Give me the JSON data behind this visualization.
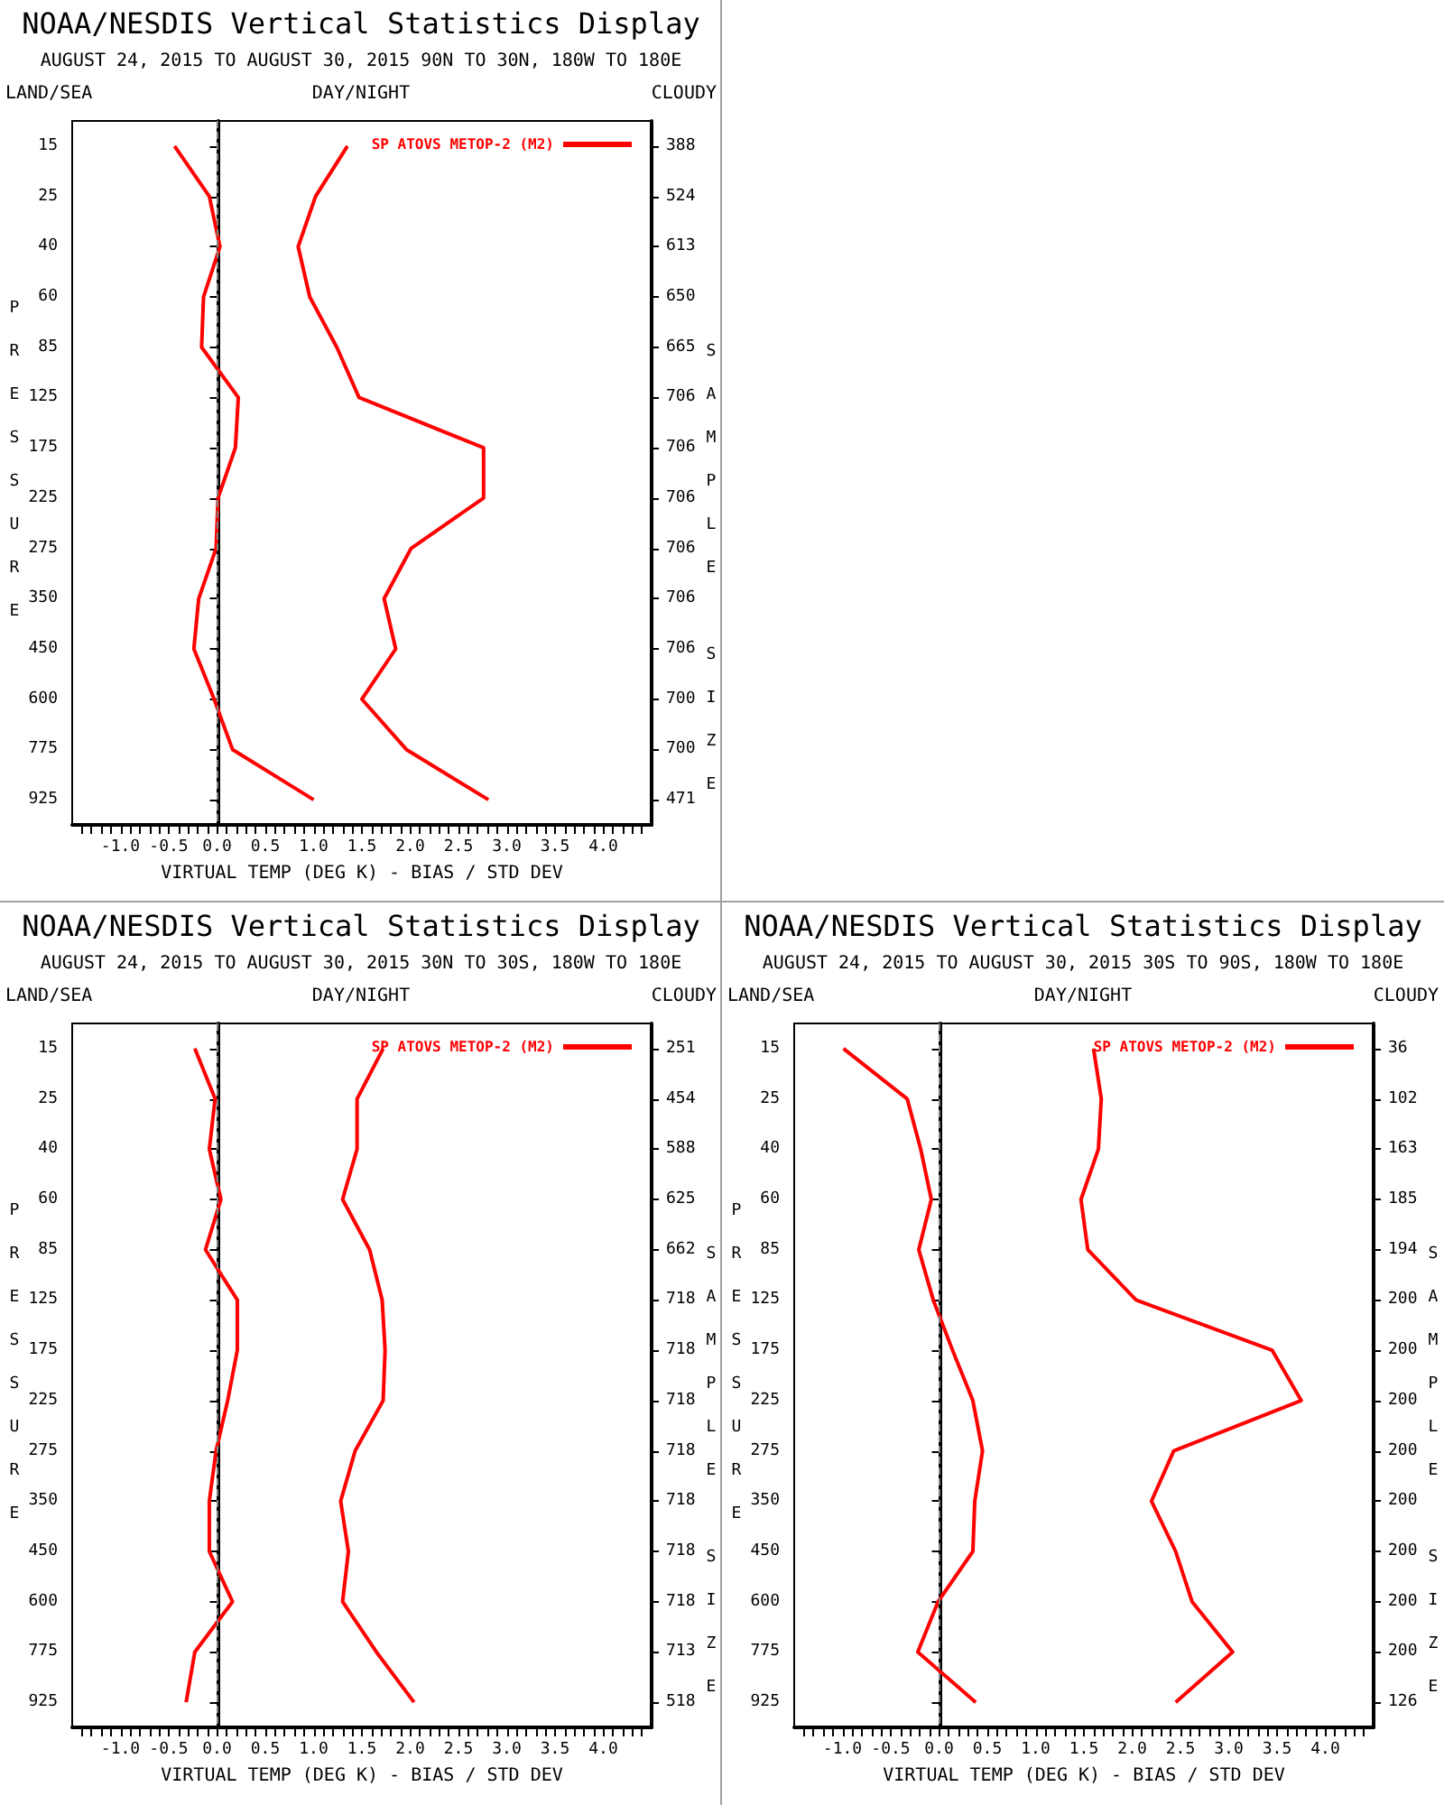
{
  "chart_data": [
    {
      "type": "line",
      "orientation": "horizontal",
      "title": "NOAA/NESDIS Vertical Statistics Display",
      "subtitle": "AUGUST 24, 2015 TO AUGUST 30, 2015 90N TO 30N, 180W TO 180E",
      "xlabel": "VIRTUAL TEMP (DEG K) - BIAS / STD DEV",
      "ylabel": "PRESSURE",
      "y2label": "SAMPLE SIZE",
      "annotations": [
        "LAND/SEA",
        "DAY/NIGHT",
        "CLOUDY"
      ],
      "legend": "top right",
      "categories": [
        "15",
        "25",
        "40",
        "60",
        "85",
        "125",
        "175",
        "225",
        "275",
        "350",
        "450",
        "600",
        "775",
        "925"
      ],
      "y2_categories": [
        "388",
        "524",
        "613",
        "650",
        "665",
        "706",
        "706",
        "706",
        "706",
        "706",
        "706",
        "700",
        "700",
        "471"
      ],
      "series": [
        {
          "name": "SP ATOVS METOP-2 (M2)",
          "color": "#ff0000",
          "values": [
            -0.44,
            -0.08,
            0.03,
            -0.14,
            -0.16,
            0.22,
            0.19,
            0.01,
            -0.01,
            -0.19,
            -0.24,
            -0.03,
            0.16,
            1.0
          ]
        },
        {
          "color": "#ff0000",
          "values": [
            1.35,
            1.02,
            0.84,
            0.96,
            1.24,
            1.47,
            2.76,
            2.76,
            2.01,
            1.73,
            1.85,
            1.5,
            1.96,
            2.81
          ]
        }
      ],
      "xlim": [
        -1.5,
        4.5
      ],
      "xticks": [
        {
          "value": -1.4,
          "label": null
        },
        {
          "value": -1.3,
          "label": null
        },
        {
          "value": -1.2,
          "label": null
        },
        {
          "value": -1.1,
          "label": null
        },
        {
          "value": -1,
          "label": "-1.0"
        },
        {
          "value": -0.9,
          "label": null
        },
        {
          "value": -0.8,
          "label": null
        },
        {
          "value": -0.7,
          "label": null
        },
        {
          "value": -0.6,
          "label": null
        },
        {
          "value": -0.5,
          "label": "-0.5"
        },
        {
          "value": -0.4,
          "label": null
        },
        {
          "value": -0.3,
          "label": null
        },
        {
          "value": -0.2,
          "label": null
        },
        {
          "value": -0.1,
          "label": null
        },
        {
          "value": 0,
          "label": "0.0"
        },
        {
          "value": 0.1,
          "label": null
        },
        {
          "value": 0.2,
          "label": null
        },
        {
          "value": 0.3,
          "label": null
        },
        {
          "value": 0.4,
          "label": null
        },
        {
          "value": 0.5,
          "label": "0.5"
        },
        {
          "value": 0.6,
          "label": null
        },
        {
          "value": 0.7,
          "label": null
        },
        {
          "value": 0.8,
          "label": null
        },
        {
          "value": 0.9,
          "label": null
        },
        {
          "value": 1,
          "label": "1.0"
        },
        {
          "value": 1.1,
          "label": null
        },
        {
          "value": 1.2,
          "label": null
        },
        {
          "value": 1.3,
          "label": null
        },
        {
          "value": 1.4,
          "label": null
        },
        {
          "value": 1.5,
          "label": "1.5"
        },
        {
          "value": 1.6,
          "label": null
        },
        {
          "value": 1.7,
          "label": null
        },
        {
          "value": 1.8,
          "label": null
        },
        {
          "value": 1.9,
          "label": null
        },
        {
          "value": 2,
          "label": "2.0"
        },
        {
          "value": 2.1,
          "label": null
        },
        {
          "value": 2.2,
          "label": null
        },
        {
          "value": 2.3,
          "label": null
        },
        {
          "value": 2.4,
          "label": null
        },
        {
          "value": 2.5,
          "label": "2.5"
        },
        {
          "value": 2.6,
          "label": null
        },
        {
          "value": 2.7,
          "label": null
        },
        {
          "value": 2.8,
          "label": null
        },
        {
          "value": 2.9,
          "label": null
        },
        {
          "value": 3,
          "label": "3.0"
        },
        {
          "value": 3.1,
          "label": null
        },
        {
          "value": 3.2,
          "label": null
        },
        {
          "value": 3.3,
          "label": null
        },
        {
          "value": 3.4,
          "label": null
        },
        {
          "value": 3.5,
          "label": "3.5"
        },
        {
          "value": 3.6,
          "label": null
        },
        {
          "value": 3.7,
          "label": null
        },
        {
          "value": 3.8,
          "label": null
        },
        {
          "value": 3.9,
          "label": null
        },
        {
          "value": 4,
          "label": "4.0"
        },
        {
          "value": 4.1,
          "label": null
        },
        {
          "value": 4.2,
          "label": null
        },
        {
          "value": 4.3,
          "label": null
        },
        {
          "value": 4.4,
          "label": null
        }
      ],
      "ref_lines": [
        {
          "axis": "x",
          "value": 0,
          "color": "#808080",
          "line_style": "dashed"
        }
      ]
    },
    {
      "type": "line",
      "orientation": "horizontal",
      "title": "NOAA/NESDIS Vertical Statistics Display",
      "subtitle": "AUGUST 24, 2015 TO AUGUST 30, 2015 30N TO 30S, 180W TO 180E",
      "xlabel": "VIRTUAL TEMP (DEG K) - BIAS / STD DEV",
      "ylabel": "PRESSURE",
      "y2label": "SAMPLE SIZE",
      "annotations": [
        "LAND/SEA",
        "DAY/NIGHT",
        "CLOUDY"
      ],
      "legend": "top right",
      "categories": [
        "15",
        "25",
        "40",
        "60",
        "85",
        "125",
        "175",
        "225",
        "275",
        "350",
        "450",
        "600",
        "775",
        "925"
      ],
      "y2_categories": [
        "251",
        "454",
        "588",
        "625",
        "662",
        "718",
        "718",
        "718",
        "718",
        "718",
        "718",
        "718",
        "713",
        "518"
      ],
      "series": [
        {
          "name": "SP ATOVS METOP-2 (M2)",
          "color": "#ff0000",
          "values": [
            -0.23,
            -0.02,
            -0.08,
            0.04,
            -0.12,
            0.21,
            0.21,
            0.11,
            -0.01,
            -0.08,
            -0.08,
            0.16,
            -0.23,
            -0.32
          ]
        },
        {
          "color": "#ff0000",
          "values": [
            1.72,
            1.45,
            1.45,
            1.3,
            1.58,
            1.71,
            1.74,
            1.72,
            1.43,
            1.28,
            1.36,
            1.3,
            1.65,
            2.04
          ]
        }
      ],
      "xlim": [
        -1.5,
        4.5
      ],
      "xticks": [
        {
          "value": -1.4,
          "label": null
        },
        {
          "value": -1.3,
          "label": null
        },
        {
          "value": -1.2,
          "label": null
        },
        {
          "value": -1.1,
          "label": null
        },
        {
          "value": -1,
          "label": "-1.0"
        },
        {
          "value": -0.9,
          "label": null
        },
        {
          "value": -0.8,
          "label": null
        },
        {
          "value": -0.7,
          "label": null
        },
        {
          "value": -0.6,
          "label": null
        },
        {
          "value": -0.5,
          "label": "-0.5"
        },
        {
          "value": -0.4,
          "label": null
        },
        {
          "value": -0.3,
          "label": null
        },
        {
          "value": -0.2,
          "label": null
        },
        {
          "value": -0.1,
          "label": null
        },
        {
          "value": 0,
          "label": "0.0"
        },
        {
          "value": 0.1,
          "label": null
        },
        {
          "value": 0.2,
          "label": null
        },
        {
          "value": 0.3,
          "label": null
        },
        {
          "value": 0.4,
          "label": null
        },
        {
          "value": 0.5,
          "label": "0.5"
        },
        {
          "value": 0.6,
          "label": null
        },
        {
          "value": 0.7,
          "label": null
        },
        {
          "value": 0.8,
          "label": null
        },
        {
          "value": 0.9,
          "label": null
        },
        {
          "value": 1,
          "label": "1.0"
        },
        {
          "value": 1.1,
          "label": null
        },
        {
          "value": 1.2,
          "label": null
        },
        {
          "value": 1.3,
          "label": null
        },
        {
          "value": 1.4,
          "label": null
        },
        {
          "value": 1.5,
          "label": "1.5"
        },
        {
          "value": 1.6,
          "label": null
        },
        {
          "value": 1.7,
          "label": null
        },
        {
          "value": 1.8,
          "label": null
        },
        {
          "value": 1.9,
          "label": null
        },
        {
          "value": 2,
          "label": "2.0"
        },
        {
          "value": 2.1,
          "label": null
        },
        {
          "value": 2.2,
          "label": null
        },
        {
          "value": 2.3,
          "label": null
        },
        {
          "value": 2.4,
          "label": null
        },
        {
          "value": 2.5,
          "label": "2.5"
        },
        {
          "value": 2.6,
          "label": null
        },
        {
          "value": 2.7,
          "label": null
        },
        {
          "value": 2.8,
          "label": null
        },
        {
          "value": 2.9,
          "label": null
        },
        {
          "value": 3,
          "label": "3.0"
        },
        {
          "value": 3.1,
          "label": null
        },
        {
          "value": 3.2,
          "label": null
        },
        {
          "value": 3.3,
          "label": null
        },
        {
          "value": 3.4,
          "label": null
        },
        {
          "value": 3.5,
          "label": "3.5"
        },
        {
          "value": 3.6,
          "label": null
        },
        {
          "value": 3.7,
          "label": null
        },
        {
          "value": 3.8,
          "label": null
        },
        {
          "value": 3.9,
          "label": null
        },
        {
          "value": 4,
          "label": "4.0"
        },
        {
          "value": 4.1,
          "label": null
        },
        {
          "value": 4.2,
          "label": null
        },
        {
          "value": 4.3,
          "label": null
        },
        {
          "value": 4.4,
          "label": null
        }
      ],
      "ref_lines": [
        {
          "axis": "x",
          "value": 0,
          "color": "#808080",
          "line_style": "dashed"
        }
      ]
    },
    {
      "type": "line",
      "orientation": "horizontal",
      "title": "NOAA/NESDIS Vertical Statistics Display",
      "subtitle": "AUGUST 24, 2015 TO AUGUST 30, 2015 30S TO 90S, 180W TO 180E",
      "xlabel": "VIRTUAL TEMP (DEG K) - BIAS / STD DEV",
      "ylabel": "PRESSURE",
      "y2label": "SAMPLE SIZE",
      "annotations": [
        "LAND/SEA",
        "DAY/NIGHT",
        "CLOUDY"
      ],
      "legend": "top right",
      "categories": [
        "15",
        "25",
        "40",
        "60",
        "85",
        "125",
        "175",
        "225",
        "275",
        "350",
        "450",
        "600",
        "775",
        "925"
      ],
      "y2_categories": [
        "36",
        "102",
        "163",
        "185",
        "194",
        "200",
        "200",
        "200",
        "200",
        "200",
        "200",
        "200",
        "200",
        "126"
      ],
      "series": [
        {
          "name": "SP ATOVS METOP-2 (M2)",
          "color": "#ff0000",
          "values": [
            -0.99,
            -0.33,
            -0.19,
            -0.08,
            -0.21,
            -0.06,
            0.14,
            0.35,
            0.45,
            0.37,
            0.35,
            -0.01,
            -0.22,
            0.38
          ]
        },
        {
          "color": "#ff0000",
          "values": [
            1.6,
            1.68,
            1.65,
            1.47,
            1.54,
            2.04,
            3.45,
            3.75,
            2.43,
            2.2,
            2.45,
            2.62,
            3.04,
            2.45
          ]
        }
      ],
      "xlim": [
        -1.5,
        4.5
      ],
      "xticks": [
        {
          "value": -1.4,
          "label": null
        },
        {
          "value": -1.3,
          "label": null
        },
        {
          "value": -1.2,
          "label": null
        },
        {
          "value": -1.1,
          "label": null
        },
        {
          "value": -1,
          "label": "-1.0"
        },
        {
          "value": -0.9,
          "label": null
        },
        {
          "value": -0.8,
          "label": null
        },
        {
          "value": -0.7,
          "label": null
        },
        {
          "value": -0.6,
          "label": null
        },
        {
          "value": -0.5,
          "label": "-0.5"
        },
        {
          "value": -0.4,
          "label": null
        },
        {
          "value": -0.3,
          "label": null
        },
        {
          "value": -0.2,
          "label": null
        },
        {
          "value": -0.1,
          "label": null
        },
        {
          "value": 0,
          "label": "0.0"
        },
        {
          "value": 0.1,
          "label": null
        },
        {
          "value": 0.2,
          "label": null
        },
        {
          "value": 0.3,
          "label": null
        },
        {
          "value": 0.4,
          "label": null
        },
        {
          "value": 0.5,
          "label": "0.5"
        },
        {
          "value": 0.6,
          "label": null
        },
        {
          "value": 0.7,
          "label": null
        },
        {
          "value": 0.8,
          "label": null
        },
        {
          "value": 0.9,
          "label": null
        },
        {
          "value": 1,
          "label": "1.0"
        },
        {
          "value": 1.1,
          "label": null
        },
        {
          "value": 1.2,
          "label": null
        },
        {
          "value": 1.3,
          "label": null
        },
        {
          "value": 1.4,
          "label": null
        },
        {
          "value": 1.5,
          "label": "1.5"
        },
        {
          "value": 1.6,
          "label": null
        },
        {
          "value": 1.7,
          "label": null
        },
        {
          "value": 1.8,
          "label": null
        },
        {
          "value": 1.9,
          "label": null
        },
        {
          "value": 2,
          "label": "2.0"
        },
        {
          "value": 2.1,
          "label": null
        },
        {
          "value": 2.2,
          "label": null
        },
        {
          "value": 2.3,
          "label": null
        },
        {
          "value": 2.4,
          "label": null
        },
        {
          "value": 2.5,
          "label": "2.5"
        },
        {
          "value": 2.6,
          "label": null
        },
        {
          "value": 2.7,
          "label": null
        },
        {
          "value": 2.8,
          "label": null
        },
        {
          "value": 2.9,
          "label": null
        },
        {
          "value": 3,
          "label": "3.0"
        },
        {
          "value": 3.1,
          "label": null
        },
        {
          "value": 3.2,
          "label": null
        },
        {
          "value": 3.3,
          "label": null
        },
        {
          "value": 3.4,
          "label": null
        },
        {
          "value": 3.5,
          "label": "3.5"
        },
        {
          "value": 3.6,
          "label": null
        },
        {
          "value": 3.7,
          "label": null
        },
        {
          "value": 3.8,
          "label": null
        },
        {
          "value": 3.9,
          "label": null
        },
        {
          "value": 4,
          "label": "4.0"
        },
        {
          "value": 4.1,
          "label": null
        },
        {
          "value": 4.2,
          "label": null
        },
        {
          "value": 4.3,
          "label": null
        },
        {
          "value": 4.4,
          "label": null
        }
      ],
      "ref_lines": [
        {
          "axis": "x",
          "value": 0,
          "color": "#808080",
          "line_style": "dashed"
        }
      ]
    }
  ]
}
